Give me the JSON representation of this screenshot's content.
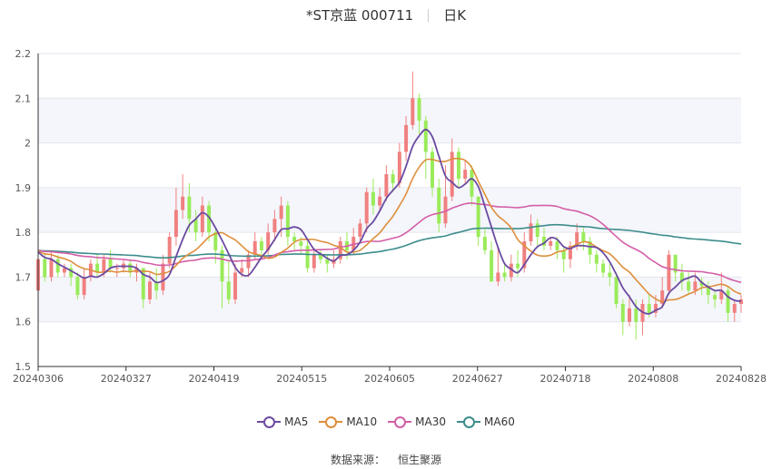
{
  "header": {
    "title": "*ST京蓝 000711",
    "period": "日K"
  },
  "source": {
    "label": "数据来源：",
    "name": "恒生聚源"
  },
  "legend": [
    {
      "key": "ma5",
      "label": "MA5",
      "color": "#6b4ba1"
    },
    {
      "key": "ma10",
      "label": "MA10",
      "color": "#de8e3c"
    },
    {
      "key": "ma30",
      "label": "MA30",
      "color": "#d35ea7"
    },
    {
      "key": "ma60",
      "label": "MA60",
      "color": "#3d8c8c"
    }
  ],
  "chart_data": {
    "type": "candlestick",
    "y_ticks": [
      "1.5",
      "1.6",
      "1.7",
      "1.8",
      "1.9",
      "2",
      "2.1",
      "2.2"
    ],
    "ylim": [
      1.5,
      2.2
    ],
    "x_ticks": [
      "20240306",
      "20240327",
      "20240419",
      "20240515",
      "20240605",
      "20240627",
      "20240718",
      "20240808",
      "20240828"
    ],
    "grid": "horizontal",
    "legend_position": "bottom",
    "colors": {
      "up": "#f08080",
      "down": "#9aeb5a"
    },
    "candles": [
      [
        1.67,
        1.74,
        1.65,
        1.76
      ],
      [
        1.74,
        1.7,
        1.69,
        1.75
      ],
      [
        1.7,
        1.74,
        1.69,
        1.76
      ],
      [
        1.74,
        1.71,
        1.7,
        1.75
      ],
      [
        1.71,
        1.72,
        1.7,
        1.73
      ],
      [
        1.72,
        1.7,
        1.68,
        1.73
      ],
      [
        1.7,
        1.66,
        1.65,
        1.71
      ],
      [
        1.66,
        1.7,
        1.65,
        1.72
      ],
      [
        1.7,
        1.73,
        1.69,
        1.74
      ],
      [
        1.73,
        1.71,
        1.7,
        1.75
      ],
      [
        1.71,
        1.74,
        1.7,
        1.75
      ],
      [
        1.74,
        1.72,
        1.71,
        1.76
      ],
      [
        1.72,
        1.72,
        1.7,
        1.73
      ],
      [
        1.72,
        1.73,
        1.71,
        1.74
      ],
      [
        1.73,
        1.71,
        1.7,
        1.74
      ],
      [
        1.71,
        1.72,
        1.69,
        1.73
      ],
      [
        1.72,
        1.65,
        1.63,
        1.72
      ],
      [
        1.65,
        1.69,
        1.64,
        1.71
      ],
      [
        1.69,
        1.67,
        1.65,
        1.72
      ],
      [
        1.67,
        1.73,
        1.66,
        1.75
      ],
      [
        1.73,
        1.79,
        1.72,
        1.8
      ],
      [
        1.79,
        1.85,
        1.77,
        1.9
      ],
      [
        1.85,
        1.88,
        1.83,
        1.93
      ],
      [
        1.88,
        1.83,
        1.8,
        1.91
      ],
      [
        1.83,
        1.8,
        1.78,
        1.85
      ],
      [
        1.8,
        1.86,
        1.79,
        1.88
      ],
      [
        1.86,
        1.8,
        1.78,
        1.87
      ],
      [
        1.8,
        1.76,
        1.73,
        1.81
      ],
      [
        1.76,
        1.69,
        1.63,
        1.77
      ],
      [
        1.69,
        1.65,
        1.64,
        1.74
      ],
      [
        1.65,
        1.71,
        1.64,
        1.73
      ],
      [
        1.71,
        1.72,
        1.7,
        1.74
      ],
      [
        1.72,
        1.75,
        1.7,
        1.76
      ],
      [
        1.75,
        1.78,
        1.74,
        1.8
      ],
      [
        1.78,
        1.76,
        1.74,
        1.79
      ],
      [
        1.76,
        1.8,
        1.75,
        1.82
      ],
      [
        1.8,
        1.83,
        1.78,
        1.85
      ],
      [
        1.83,
        1.86,
        1.79,
        1.88
      ],
      [
        1.86,
        1.79,
        1.77,
        1.87
      ],
      [
        1.79,
        1.78,
        1.76,
        1.8
      ],
      [
        1.78,
        1.77,
        1.75,
        1.79
      ],
      [
        1.77,
        1.72,
        1.71,
        1.78
      ],
      [
        1.72,
        1.75,
        1.71,
        1.76
      ],
      [
        1.75,
        1.74,
        1.73,
        1.76
      ],
      [
        1.74,
        1.73,
        1.71,
        1.75
      ],
      [
        1.73,
        1.74,
        1.72,
        1.76
      ],
      [
        1.74,
        1.78,
        1.73,
        1.79
      ],
      [
        1.78,
        1.76,
        1.74,
        1.8
      ],
      [
        1.76,
        1.79,
        1.75,
        1.81
      ],
      [
        1.79,
        1.82,
        1.78,
        1.83
      ],
      [
        1.82,
        1.89,
        1.8,
        1.9
      ],
      [
        1.89,
        1.86,
        1.84,
        1.92
      ],
      [
        1.86,
        1.88,
        1.85,
        1.9
      ],
      [
        1.88,
        1.93,
        1.87,
        1.95
      ],
      [
        1.93,
        1.91,
        1.89,
        1.94
      ],
      [
        1.91,
        1.98,
        1.9,
        2.0
      ],
      [
        1.98,
        2.04,
        1.96,
        2.06
      ],
      [
        2.04,
        2.1,
        2.03,
        2.16
      ],
      [
        2.1,
        2.05,
        2.02,
        2.11
      ],
      [
        2.05,
        1.98,
        1.92,
        2.06
      ],
      [
        1.98,
        1.9,
        1.88,
        1.99
      ],
      [
        1.9,
        1.82,
        1.8,
        1.92
      ],
      [
        1.82,
        1.88,
        1.81,
        1.95
      ],
      [
        1.88,
        1.98,
        1.87,
        2.01
      ],
      [
        1.98,
        1.92,
        1.9,
        1.99
      ],
      [
        1.92,
        1.94,
        1.91,
        1.96
      ],
      [
        1.94,
        1.88,
        1.86,
        1.95
      ],
      [
        1.88,
        1.79,
        1.77,
        1.88
      ],
      [
        1.79,
        1.76,
        1.75,
        1.81
      ],
      [
        1.76,
        1.69,
        1.69,
        1.78
      ],
      [
        1.69,
        1.71,
        1.68,
        1.77
      ],
      [
        1.71,
        1.7,
        1.69,
        1.73
      ],
      [
        1.7,
        1.73,
        1.69,
        1.75
      ],
      [
        1.73,
        1.72,
        1.7,
        1.76
      ],
      [
        1.72,
        1.78,
        1.71,
        1.8
      ],
      [
        1.78,
        1.82,
        1.77,
        1.84
      ],
      [
        1.82,
        1.79,
        1.77,
        1.83
      ],
      [
        1.79,
        1.77,
        1.76,
        1.81
      ],
      [
        1.77,
        1.78,
        1.76,
        1.79
      ],
      [
        1.78,
        1.76,
        1.74,
        1.79
      ],
      [
        1.76,
        1.74,
        1.71,
        1.77
      ],
      [
        1.74,
        1.77,
        1.72,
        1.78
      ],
      [
        1.77,
        1.8,
        1.76,
        1.82
      ],
      [
        1.8,
        1.78,
        1.76,
        1.81
      ],
      [
        1.78,
        1.75,
        1.73,
        1.79
      ],
      [
        1.75,
        1.73,
        1.71,
        1.76
      ],
      [
        1.73,
        1.71,
        1.7,
        1.74
      ],
      [
        1.71,
        1.7,
        1.68,
        1.73
      ],
      [
        1.7,
        1.64,
        1.63,
        1.71
      ],
      [
        1.64,
        1.6,
        1.57,
        1.65
      ],
      [
        1.6,
        1.63,
        1.59,
        1.66
      ],
      [
        1.63,
        1.6,
        1.56,
        1.65
      ],
      [
        1.6,
        1.64,
        1.57,
        1.65
      ],
      [
        1.64,
        1.62,
        1.61,
        1.66
      ],
      [
        1.62,
        1.64,
        1.61,
        1.66
      ],
      [
        1.64,
        1.67,
        1.63,
        1.7
      ],
      [
        1.67,
        1.75,
        1.66,
        1.76
      ],
      [
        1.75,
        1.71,
        1.69,
        1.75
      ],
      [
        1.71,
        1.69,
        1.67,
        1.73
      ],
      [
        1.69,
        1.67,
        1.66,
        1.71
      ],
      [
        1.67,
        1.69,
        1.66,
        1.71
      ],
      [
        1.69,
        1.68,
        1.66,
        1.7
      ],
      [
        1.68,
        1.66,
        1.64,
        1.69
      ],
      [
        1.66,
        1.65,
        1.63,
        1.67
      ],
      [
        1.65,
        1.67,
        1.64,
        1.71
      ],
      [
        1.67,
        1.62,
        1.6,
        1.68
      ],
      [
        1.62,
        1.64,
        1.6,
        1.65
      ],
      [
        1.64,
        1.65,
        1.62,
        1.66
      ]
    ]
  }
}
